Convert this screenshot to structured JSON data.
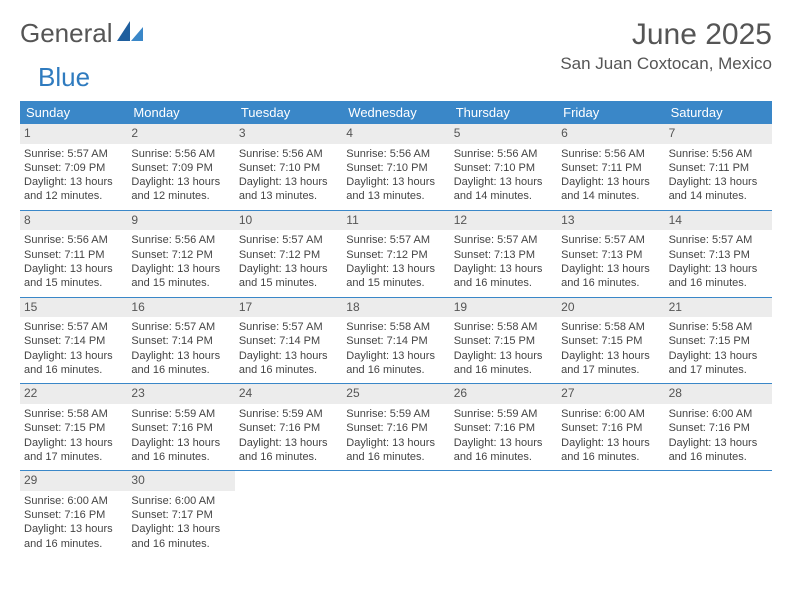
{
  "brand": {
    "part1": "General",
    "part2": "Blue"
  },
  "title": "June 2025",
  "location": "San Juan Coxtocan, Mexico",
  "colors": {
    "header_bg": "#3a87c8",
    "header_text": "#ffffff",
    "daynum_bg": "#ececec",
    "week_divider": "#3a87c8",
    "body_text": "#444444",
    "title_text": "#555555",
    "page_bg": "#ffffff"
  },
  "layout": {
    "columns": 7,
    "rows": 5,
    "cell_font_size_pt": 8,
    "header_font_size_pt": 10,
    "title_font_size_pt": 22,
    "location_font_size_pt": 13
  },
  "days_of_week": [
    "Sunday",
    "Monday",
    "Tuesday",
    "Wednesday",
    "Thursday",
    "Friday",
    "Saturday"
  ],
  "weeks": [
    [
      {
        "n": "1",
        "sunrise": "Sunrise: 5:57 AM",
        "sunset": "Sunset: 7:09 PM",
        "daylight": "Daylight: 13 hours and 12 minutes."
      },
      {
        "n": "2",
        "sunrise": "Sunrise: 5:56 AM",
        "sunset": "Sunset: 7:09 PM",
        "daylight": "Daylight: 13 hours and 12 minutes."
      },
      {
        "n": "3",
        "sunrise": "Sunrise: 5:56 AM",
        "sunset": "Sunset: 7:10 PM",
        "daylight": "Daylight: 13 hours and 13 minutes."
      },
      {
        "n": "4",
        "sunrise": "Sunrise: 5:56 AM",
        "sunset": "Sunset: 7:10 PM",
        "daylight": "Daylight: 13 hours and 13 minutes."
      },
      {
        "n": "5",
        "sunrise": "Sunrise: 5:56 AM",
        "sunset": "Sunset: 7:10 PM",
        "daylight": "Daylight: 13 hours and 14 minutes."
      },
      {
        "n": "6",
        "sunrise": "Sunrise: 5:56 AM",
        "sunset": "Sunset: 7:11 PM",
        "daylight": "Daylight: 13 hours and 14 minutes."
      },
      {
        "n": "7",
        "sunrise": "Sunrise: 5:56 AM",
        "sunset": "Sunset: 7:11 PM",
        "daylight": "Daylight: 13 hours and 14 minutes."
      }
    ],
    [
      {
        "n": "8",
        "sunrise": "Sunrise: 5:56 AM",
        "sunset": "Sunset: 7:11 PM",
        "daylight": "Daylight: 13 hours and 15 minutes."
      },
      {
        "n": "9",
        "sunrise": "Sunrise: 5:56 AM",
        "sunset": "Sunset: 7:12 PM",
        "daylight": "Daylight: 13 hours and 15 minutes."
      },
      {
        "n": "10",
        "sunrise": "Sunrise: 5:57 AM",
        "sunset": "Sunset: 7:12 PM",
        "daylight": "Daylight: 13 hours and 15 minutes."
      },
      {
        "n": "11",
        "sunrise": "Sunrise: 5:57 AM",
        "sunset": "Sunset: 7:12 PM",
        "daylight": "Daylight: 13 hours and 15 minutes."
      },
      {
        "n": "12",
        "sunrise": "Sunrise: 5:57 AM",
        "sunset": "Sunset: 7:13 PM",
        "daylight": "Daylight: 13 hours and 16 minutes."
      },
      {
        "n": "13",
        "sunrise": "Sunrise: 5:57 AM",
        "sunset": "Sunset: 7:13 PM",
        "daylight": "Daylight: 13 hours and 16 minutes."
      },
      {
        "n": "14",
        "sunrise": "Sunrise: 5:57 AM",
        "sunset": "Sunset: 7:13 PM",
        "daylight": "Daylight: 13 hours and 16 minutes."
      }
    ],
    [
      {
        "n": "15",
        "sunrise": "Sunrise: 5:57 AM",
        "sunset": "Sunset: 7:14 PM",
        "daylight": "Daylight: 13 hours and 16 minutes."
      },
      {
        "n": "16",
        "sunrise": "Sunrise: 5:57 AM",
        "sunset": "Sunset: 7:14 PM",
        "daylight": "Daylight: 13 hours and 16 minutes."
      },
      {
        "n": "17",
        "sunrise": "Sunrise: 5:57 AM",
        "sunset": "Sunset: 7:14 PM",
        "daylight": "Daylight: 13 hours and 16 minutes."
      },
      {
        "n": "18",
        "sunrise": "Sunrise: 5:58 AM",
        "sunset": "Sunset: 7:14 PM",
        "daylight": "Daylight: 13 hours and 16 minutes."
      },
      {
        "n": "19",
        "sunrise": "Sunrise: 5:58 AM",
        "sunset": "Sunset: 7:15 PM",
        "daylight": "Daylight: 13 hours and 16 minutes."
      },
      {
        "n": "20",
        "sunrise": "Sunrise: 5:58 AM",
        "sunset": "Sunset: 7:15 PM",
        "daylight": "Daylight: 13 hours and 17 minutes."
      },
      {
        "n": "21",
        "sunrise": "Sunrise: 5:58 AM",
        "sunset": "Sunset: 7:15 PM",
        "daylight": "Daylight: 13 hours and 17 minutes."
      }
    ],
    [
      {
        "n": "22",
        "sunrise": "Sunrise: 5:58 AM",
        "sunset": "Sunset: 7:15 PM",
        "daylight": "Daylight: 13 hours and 17 minutes."
      },
      {
        "n": "23",
        "sunrise": "Sunrise: 5:59 AM",
        "sunset": "Sunset: 7:16 PM",
        "daylight": "Daylight: 13 hours and 16 minutes."
      },
      {
        "n": "24",
        "sunrise": "Sunrise: 5:59 AM",
        "sunset": "Sunset: 7:16 PM",
        "daylight": "Daylight: 13 hours and 16 minutes."
      },
      {
        "n": "25",
        "sunrise": "Sunrise: 5:59 AM",
        "sunset": "Sunset: 7:16 PM",
        "daylight": "Daylight: 13 hours and 16 minutes."
      },
      {
        "n": "26",
        "sunrise": "Sunrise: 5:59 AM",
        "sunset": "Sunset: 7:16 PM",
        "daylight": "Daylight: 13 hours and 16 minutes."
      },
      {
        "n": "27",
        "sunrise": "Sunrise: 6:00 AM",
        "sunset": "Sunset: 7:16 PM",
        "daylight": "Daylight: 13 hours and 16 minutes."
      },
      {
        "n": "28",
        "sunrise": "Sunrise: 6:00 AM",
        "sunset": "Sunset: 7:16 PM",
        "daylight": "Daylight: 13 hours and 16 minutes."
      }
    ],
    [
      {
        "n": "29",
        "sunrise": "Sunrise: 6:00 AM",
        "sunset": "Sunset: 7:16 PM",
        "daylight": "Daylight: 13 hours and 16 minutes."
      },
      {
        "n": "30",
        "sunrise": "Sunrise: 6:00 AM",
        "sunset": "Sunset: 7:17 PM",
        "daylight": "Daylight: 13 hours and 16 minutes."
      },
      null,
      null,
      null,
      null,
      null
    ]
  ]
}
